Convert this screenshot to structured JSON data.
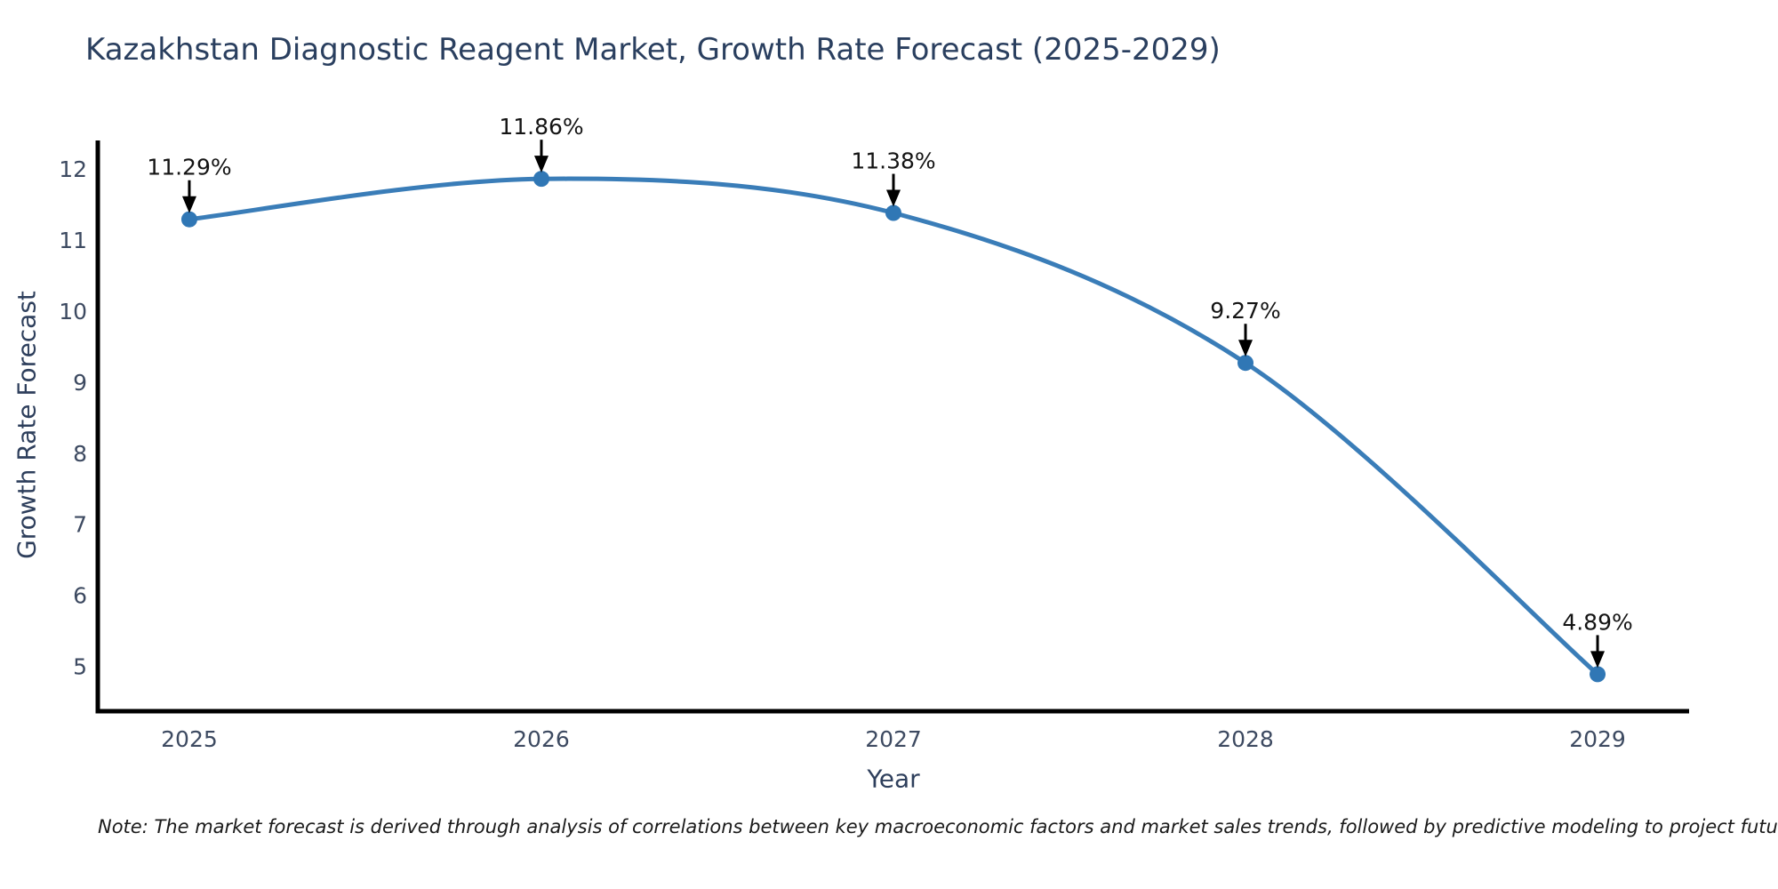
{
  "chart_data": {
    "type": "line",
    "title": "Kazakhstan Diagnostic Reagent Market, Growth Rate Forecast (2025-2029)",
    "xlabel": "Year",
    "ylabel": "Growth Rate Forecast",
    "note": "Note: The market forecast is derived through analysis of correlations between key macroeconomic factors and market sales trends, followed by predictive modeling to project future sales.",
    "x": [
      2025,
      2026,
      2027,
      2028,
      2029
    ],
    "x_tick_labels": [
      "2025",
      "2026",
      "2027",
      "2028",
      "2029"
    ],
    "series": [
      {
        "name": "Growth Rate Forecast",
        "values": [
          11.29,
          11.86,
          11.38,
          9.27,
          4.89
        ]
      }
    ],
    "point_labels": [
      "11.29%",
      "11.86%",
      "11.38%",
      "9.27%",
      "4.89%"
    ],
    "y_ticks": [
      5,
      6,
      7,
      8,
      9,
      10,
      11,
      12
    ],
    "xlim": [
      2024.74,
      2029.26
    ],
    "ylim": [
      4.37,
      12.4
    ],
    "grid": false,
    "legend": false,
    "colors": {
      "line": "#3a7db8",
      "marker": "#3077b5",
      "annotation_text": "#141414",
      "arrow": "#000000",
      "axis": "#000000",
      "tick_label": "#3d4a61",
      "title": "#2a3f5f",
      "axis_label": "#2e3f5c",
      "note_text": "#1a1a1a",
      "background": "#ffffff"
    }
  }
}
